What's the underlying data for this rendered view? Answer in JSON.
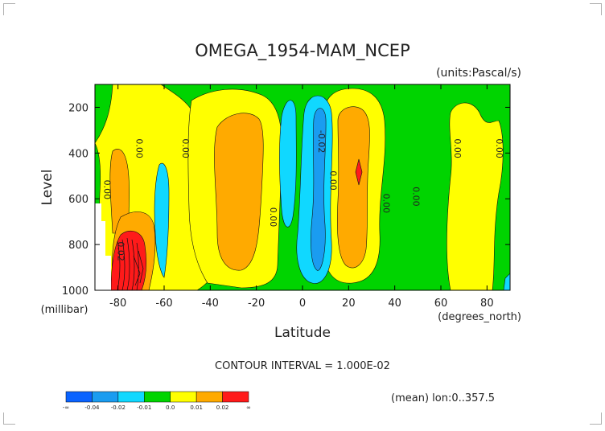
{
  "chart_data": {
    "type": "contour",
    "title": "OMEGA_1954-MAM_NCEP",
    "units_note": "(units:Pascal/s)",
    "xlabel": "Latitude",
    "x_units_note": "(degrees_north)",
    "ylabel": "Level",
    "y_units_note": "(millibar)",
    "xlim": [
      -90,
      90
    ],
    "ylim": [
      1000,
      100
    ],
    "x_ticks": [
      -80,
      -60,
      -40,
      -20,
      0,
      20,
      40,
      60,
      80
    ],
    "y_ticks": [
      200,
      400,
      600,
      800,
      1000
    ],
    "contour_interval_text": "CONTOUR INTERVAL = 1.000E-02",
    "mean_note": "(mean) lon:0..357.5",
    "contour_labels": [
      {
        "text": "0.00",
        "x": -86,
        "y": 560
      },
      {
        "text": "0.00",
        "x": -72,
        "y": 380
      },
      {
        "text": "0.00",
        "x": -52,
        "y": 380
      },
      {
        "text": "0.00",
        "x": -14,
        "y": 680
      },
      {
        "text": "-0.02",
        "x": 7,
        "y": 350
      },
      {
        "text": "0.00",
        "x": 12,
        "y": 520
      },
      {
        "text": "0.00",
        "x": 35,
        "y": 620
      },
      {
        "text": "0.00",
        "x": 48,
        "y": 590
      },
      {
        "text": "0.00",
        "x": 66,
        "y": 380
      },
      {
        "text": "0.00",
        "x": 84,
        "y": 380
      },
      {
        "text": "0.02",
        "x": -80,
        "y": 830
      }
    ],
    "colorbar": {
      "levels": [
        "-∞",
        "-0.04",
        "-0.02",
        "-0.01",
        "0.0",
        "0.01",
        "0.02",
        "∞"
      ],
      "colors": [
        "#0a63ff",
        "#1a9cf0",
        "#10d8ff",
        "#00d400",
        "#ffff00",
        "#ffaa00",
        "#ff1a1a"
      ]
    },
    "colors": {
      "positive_0_to_0.01": "#ffff00",
      "negative_-0.01_to_0": "#00d400",
      "positive_0.01_to_0.02": "#ffaa00",
      "positive_above_0.02": "#ff1a1a",
      "negative_-0.02_to_-0.01": "#10d8ff",
      "negative_below_-0.02": "#1a9cf0",
      "missing": "#ffffff"
    }
  }
}
